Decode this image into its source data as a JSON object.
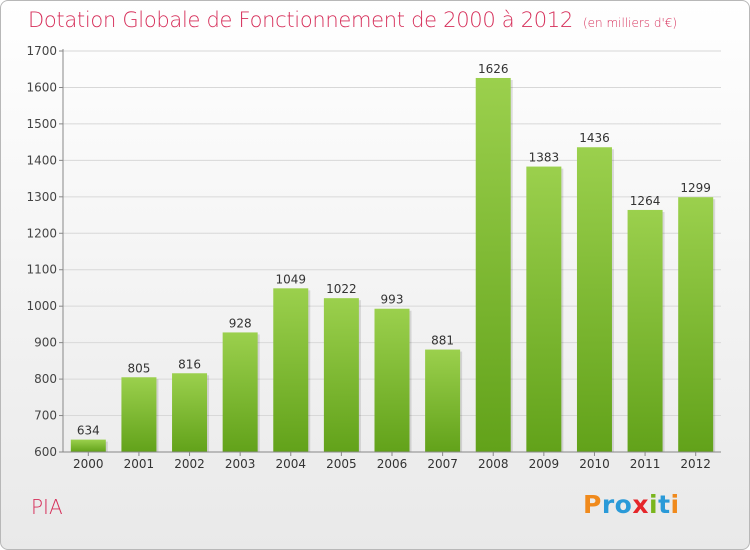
{
  "title": "Dotation Globale de Fonctionnement de 2000 à 2012",
  "unit_note": "(en milliers d'€)",
  "commune": "PIA",
  "logo": {
    "text": "Proxiti",
    "letters": [
      {
        "ch": "P",
        "color": "#f08a1c"
      },
      {
        "ch": "r",
        "color": "#2a9ad8"
      },
      {
        "ch": "o",
        "color": "#2a9ad8"
      },
      {
        "ch": "x",
        "color": "#e5262a"
      },
      {
        "ch": "i",
        "color": "#7ab51d"
      },
      {
        "ch": "t",
        "color": "#2a9ad8"
      },
      {
        "ch": "i",
        "color": "#f08a1c"
      }
    ]
  },
  "colors": {
    "bar_top": "#9bd04d",
    "bar_bottom": "#62a21a",
    "title": "#d62f5a",
    "grid": "#d8d8d8"
  },
  "chart_data": {
    "type": "bar",
    "categories": [
      "2000",
      "2001",
      "2002",
      "2003",
      "2004",
      "2005",
      "2006",
      "2007",
      "2008",
      "2009",
      "2010",
      "2011",
      "2012"
    ],
    "values": [
      634,
      805,
      816,
      928,
      1049,
      1022,
      993,
      881,
      1626,
      1383,
      1436,
      1264,
      1299
    ],
    "ylim": [
      600,
      1700
    ],
    "yticks": [
      600,
      700,
      800,
      900,
      1000,
      1100,
      1200,
      1300,
      1400,
      1500,
      1600,
      1700
    ],
    "grid": true,
    "data_labels": true
  }
}
